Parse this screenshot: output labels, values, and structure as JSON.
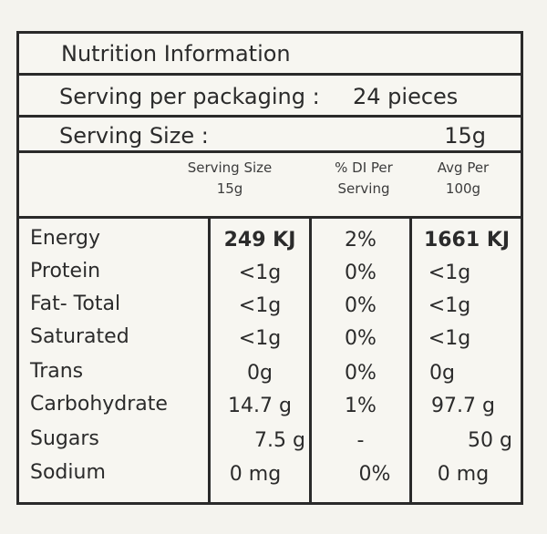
{
  "title": "Nutrition Information",
  "serving_per_packaging": {
    "label": "Serving per packaging :",
    "value": "24 pieces"
  },
  "serving_size": {
    "label": "Serving Size :",
    "value": "15g"
  },
  "columns": [
    {
      "line1": "Serving Size",
      "line2": "15g"
    },
    {
      "line1": "% DI Per",
      "line2": "Serving"
    },
    {
      "line1": "Avg Per",
      "line2": "100g"
    }
  ],
  "rows": [
    {
      "name": "Energy",
      "per_serving": "249 KJ",
      "di": "2%",
      "per_100g": "1661 KJ"
    },
    {
      "name": "Protein",
      "per_serving": "<1g",
      "di": "0%",
      "per_100g": "<1g"
    },
    {
      "name": "Fat- Total",
      "per_serving": "<1g",
      "di": "0%",
      "per_100g": "<1g"
    },
    {
      "name": "Saturated",
      "per_serving": "<1g",
      "di": "0%",
      "per_100g": "<1g"
    },
    {
      "name": "Trans",
      "per_serving": "0g",
      "di": "0%",
      "per_100g": "0g"
    },
    {
      "name": "Carbohydrate",
      "per_serving": "14.7 g",
      "di": "1%",
      "per_100g": "97.7 g"
    },
    {
      "name": "Sugars",
      "per_serving": "7.5 g",
      "di": "-",
      "per_100g": "50 g"
    },
    {
      "name": "Sodium",
      "per_serving": "0 mg",
      "di": "0%",
      "per_100g": "0 mg"
    }
  ]
}
